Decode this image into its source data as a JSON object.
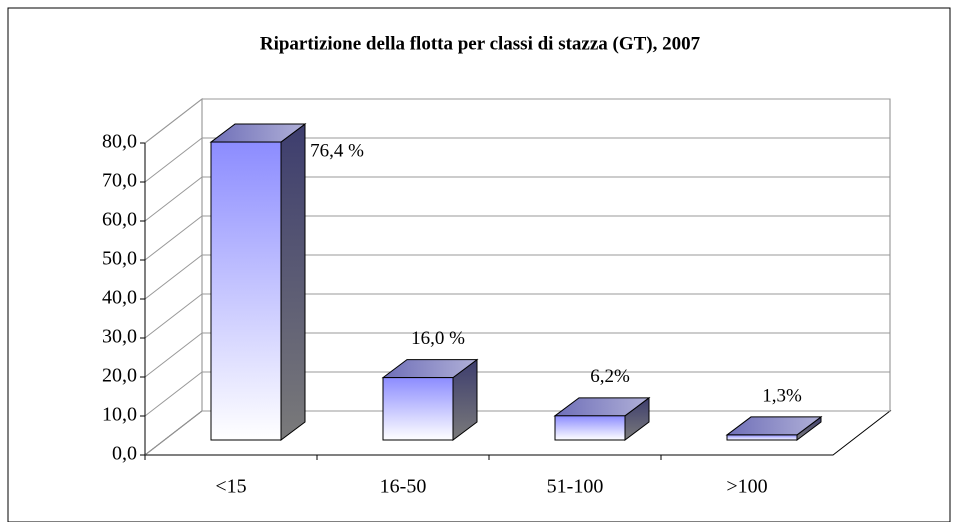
{
  "chart_data": {
    "type": "bar3d",
    "title": "Ripartizione della flotta per classi di stazza (GT), 2007",
    "categories": [
      "<15",
      "16-50",
      "51-100",
      ">100"
    ],
    "values": [
      76.4,
      16.0,
      6.2,
      1.3
    ],
    "value_labels": [
      "76,4 %",
      "16,0 %",
      "6,2%",
      "1,3%"
    ],
    "color": "#9999ff",
    "ylim": [
      0,
      80
    ],
    "yticks": [
      {
        "value": 0,
        "label": "0,0"
      },
      {
        "value": 10,
        "label": "10,0"
      },
      {
        "value": 20,
        "label": "20,0"
      },
      {
        "value": 30,
        "label": "30,0"
      },
      {
        "value": 40,
        "label": "40,0"
      },
      {
        "value": 50,
        "label": "50,0"
      },
      {
        "value": 60,
        "label": "60,0"
      },
      {
        "value": 70,
        "label": "70,0"
      },
      {
        "value": 80,
        "label": "80,0"
      }
    ],
    "grid": true
  }
}
